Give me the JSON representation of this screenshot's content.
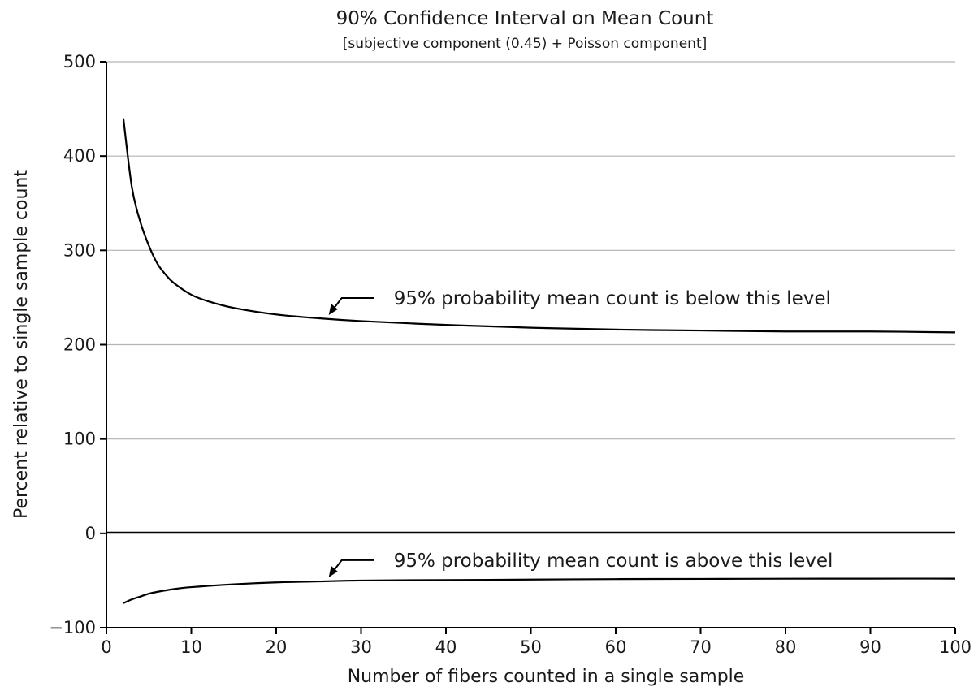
{
  "chart_data": {
    "type": "line",
    "title": "90% Confidence Interval on Mean Count",
    "subtitle": "[subjective component (0.45) + Poisson component]",
    "xlabel": "Number of fibers counted in a single sample",
    "ylabel": "Percent relative to single sample count",
    "xlim": [
      0,
      100
    ],
    "ylim": [
      -100,
      500
    ],
    "x_ticks": [
      "0",
      "10",
      "20",
      "30",
      "40",
      "50",
      "60",
      "70",
      "80",
      "90",
      "100"
    ],
    "y_ticks": [
      "−100",
      "0",
      "100",
      "200",
      "300",
      "400",
      "500"
    ],
    "grid": true,
    "series": [
      {
        "x": [
          2,
          3,
          4,
          5,
          6,
          7,
          8,
          10,
          12,
          15,
          20,
          25,
          30,
          40,
          50,
          60,
          70,
          80,
          90,
          100
        ],
        "values": [
          440,
          367,
          330,
          305,
          286,
          274,
          265,
          253,
          246,
          239,
          232,
          228,
          225,
          221,
          218,
          216,
          215,
          214,
          214,
          213
        ]
      },
      {
        "x": [
          2,
          3,
          4,
          5,
          6,
          8,
          10,
          15,
          20,
          25,
          30,
          40,
          50,
          60,
          70,
          80,
          90,
          100
        ],
        "values": [
          -74,
          -70,
          -67,
          -64,
          -62,
          -59,
          -57,
          -54,
          -52,
          -51,
          -50,
          -49.5,
          -49,
          -48.5,
          -48.3,
          -48.1,
          -48,
          -48
        ]
      }
    ],
    "annotations": [
      {
        "text": "95% probability mean count is below this level",
        "x": 26,
        "y": 228
      },
      {
        "text": "95% probability mean count is above this level",
        "x": 26,
        "y": -50
      }
    ]
  }
}
